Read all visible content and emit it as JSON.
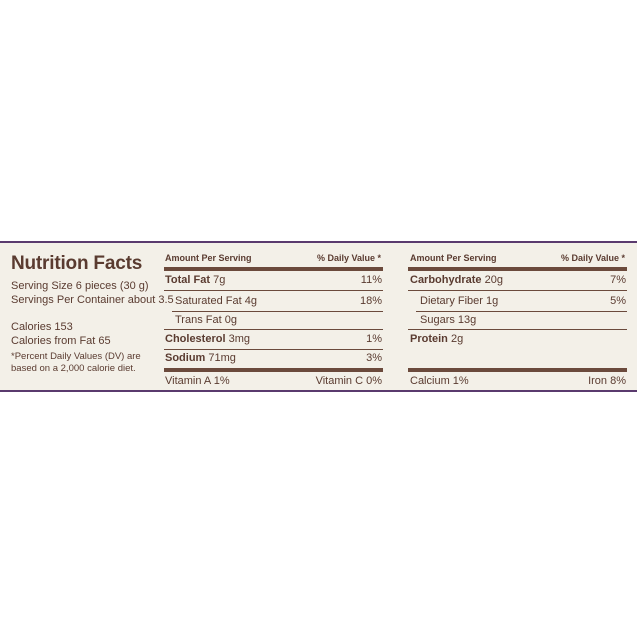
{
  "title": "Nutrition Facts",
  "serving_size": "Serving Size 6 pieces (30 g)",
  "servings_per_container": "Servings Per Container about 3.5",
  "calories": "Calories 153",
  "calories_from_fat": "Calories from Fat 65",
  "dv_note_1": "*Percent Daily Values (DV) are",
  "dv_note_2": "based on a 2,000 calorie diet.",
  "col1": {
    "hdr_amount": "Amount Per Serving",
    "hdr_dv": "% Daily Value *",
    "total_fat_name": "Total Fat",
    "total_fat_amt": "7g",
    "total_fat_dv": "11%",
    "sat_fat": "Saturated Fat 4g",
    "sat_fat_dv": "18%",
    "trans_fat": "Trans Fat 0g",
    "cholesterol_name": "Cholesterol",
    "cholesterol_amt": "3mg",
    "cholesterol_dv": "1%",
    "sodium_name": "Sodium",
    "sodium_amt": "71mg",
    "sodium_dv": "3%",
    "vitamin_a": "Vitamin A 1%",
    "vitamin_c": "Vitamin C 0%"
  },
  "col2": {
    "hdr_amount": "Amount Per Serving",
    "hdr_dv": "% Daily Value *",
    "carb_name": "Carbohydrate",
    "carb_amt": "20g",
    "carb_dv": "7%",
    "fiber": "Dietary Fiber 1g",
    "fiber_dv": "5%",
    "sugars": "Sugars 13g",
    "protein_name": "Protein",
    "protein_amt": "2g",
    "calcium": "Calcium 1%",
    "iron": "Iron 8%"
  }
}
